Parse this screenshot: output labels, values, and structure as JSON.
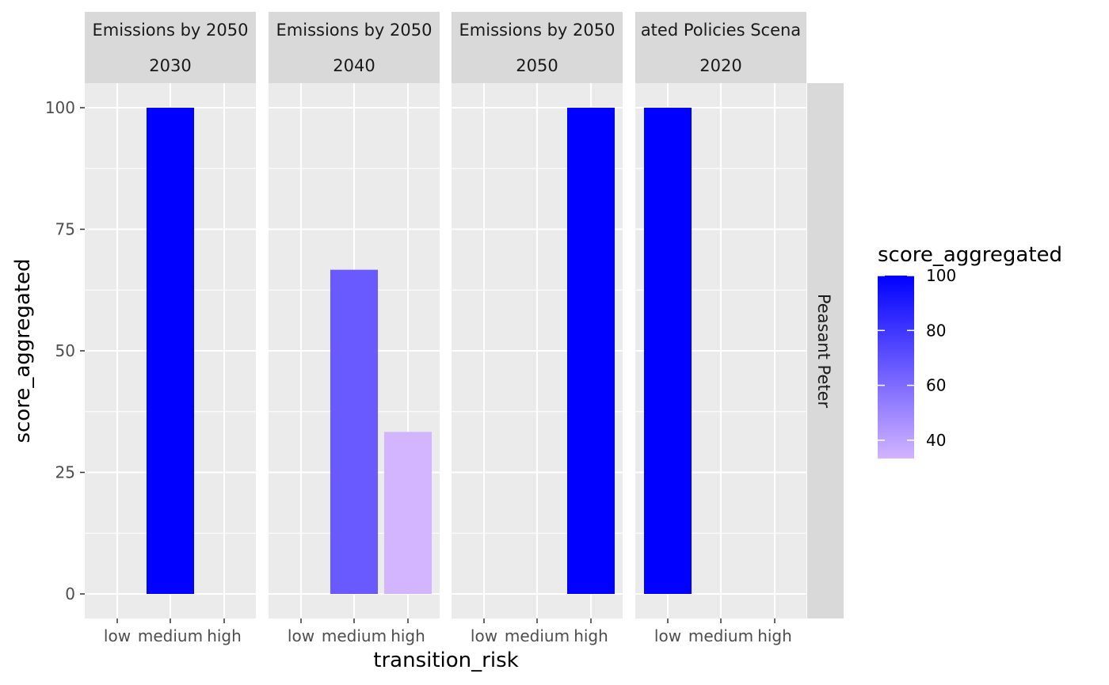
{
  "chart_data": {
    "type": "bar",
    "xlabel": "transition_risk",
    "ylabel": "score_aggregated",
    "categories": [
      "low",
      "medium",
      "high"
    ],
    "ylim": [
      0,
      105
    ],
    "yticks": [
      0,
      25,
      50,
      75,
      100
    ],
    "grid": true,
    "row_facet_label": "Peasant Peter",
    "panels": [
      {
        "strip_top": "Emissions by 2050",
        "strip_bottom": "2030",
        "bars": [
          {
            "category": "medium",
            "value": 100
          }
        ]
      },
      {
        "strip_top": "Emissions by 2050",
        "strip_bottom": "2040",
        "bars": [
          {
            "category": "medium",
            "value": 66.67
          },
          {
            "category": "high",
            "value": 33.33
          }
        ]
      },
      {
        "strip_top": "Emissions by 2050",
        "strip_bottom": "2050",
        "bars": [
          {
            "category": "high",
            "value": 100
          }
        ]
      },
      {
        "strip_top": "ated Policies Scena",
        "strip_bottom": "2020",
        "bars": [
          {
            "category": "low",
            "value": 100
          }
        ]
      }
    ],
    "legend": {
      "title": "score_aggregated",
      "position": "right",
      "min": 33.33,
      "max": 100,
      "ticks": [
        40,
        60,
        80,
        100
      ],
      "color_low": "#d2b4ff",
      "color_high": "#0000ff"
    }
  }
}
